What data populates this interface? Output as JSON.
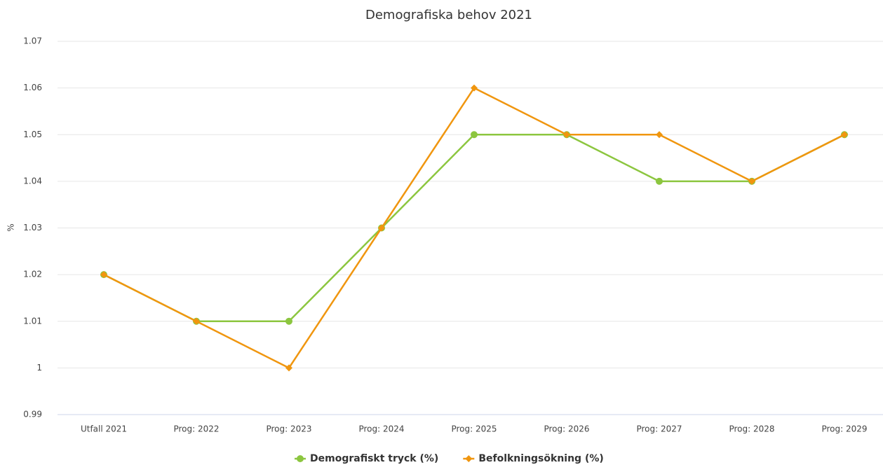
{
  "chart_data": {
    "type": "line",
    "title": "Demografiska behov 2021",
    "y_label": "%",
    "categories": [
      "Utfall 2021",
      "Prog: 2022",
      "Prog: 2023",
      "Prog: 2024",
      "Prog: 2025",
      "Prog: 2026",
      "Prog: 2027",
      "Prog: 2028",
      "Prog: 2029"
    ],
    "series": [
      {
        "name": "Demografiskt tryck (%)",
        "color": "#8cc63f",
        "marker": "circle",
        "values": [
          1.02,
          1.01,
          1.01,
          1.03,
          1.05,
          1.05,
          1.04,
          1.04,
          1.05
        ]
      },
      {
        "name": "Befolkningsökning (%)",
        "color": "#f0960f",
        "marker": "diamond",
        "values": [
          1.02,
          1.01,
          1,
          1.03,
          1.06,
          1.05,
          1.05,
          1.04,
          1.05
        ]
      }
    ],
    "ylim": [
      0.99,
      1.07
    ],
    "yticks": [
      0.99,
      1,
      1.01,
      1.02,
      1.03,
      1.04,
      1.05,
      1.06,
      1.07
    ],
    "grid": true,
    "legend": "bottom"
  }
}
